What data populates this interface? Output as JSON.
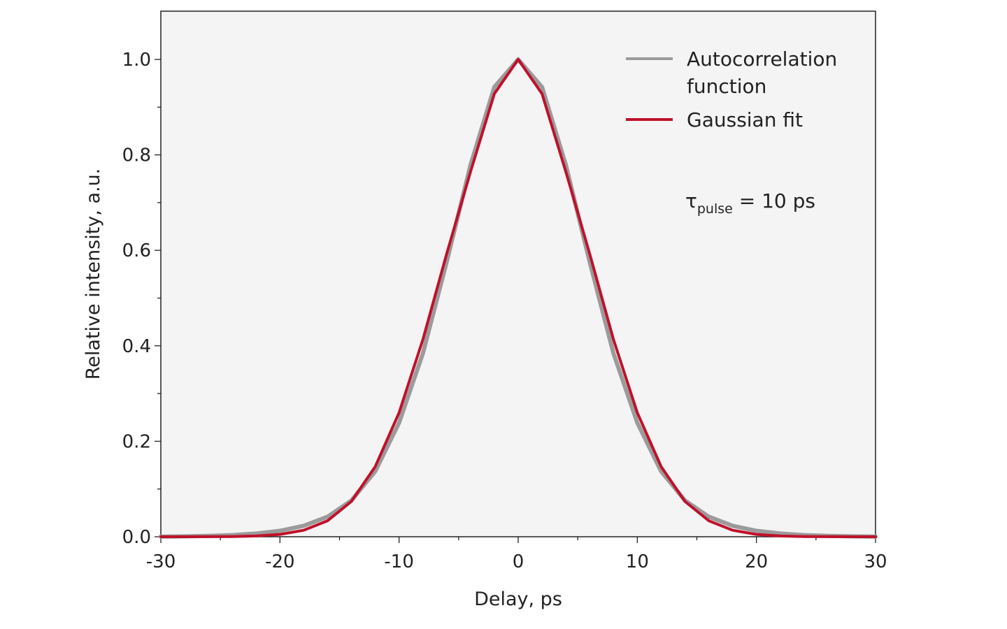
{
  "chart_data": {
    "type": "line",
    "xlabel": "Delay, ps",
    "ylabel": "Relative intensity, a.u.",
    "xlim": [
      -30,
      30
    ],
    "ylim": [
      0,
      1.1
    ],
    "x_ticks": [
      -30,
      -20,
      -10,
      0,
      10,
      20,
      30
    ],
    "x_tick_labels": [
      "-30",
      "-20",
      "-10",
      "0",
      "10",
      "20",
      "30"
    ],
    "y_ticks": [
      0.0,
      0.2,
      0.4,
      0.6,
      0.8,
      1.0
    ],
    "y_tick_labels": [
      "0.0",
      "0.2",
      "0.4",
      "0.6",
      "0.8",
      "1.0"
    ],
    "grid": false,
    "legend_position": "top-right",
    "annotation": {
      "symbol": "τ",
      "subscript": "pulse",
      "text": " = 10 ps"
    },
    "x": [
      -30,
      -28,
      -26,
      -24,
      -22,
      -20,
      -18,
      -16,
      -14,
      -12,
      -10,
      -8,
      -6,
      -4,
      -2,
      0,
      2,
      4,
      6,
      8,
      10,
      12,
      14,
      16,
      18,
      20,
      22,
      24,
      26,
      28,
      30
    ],
    "series": [
      {
        "name": "Autocorrelation function",
        "color": "#9b9b9b",
        "values": [
          0.0004,
          0.0009,
          0.0018,
          0.0035,
          0.0068,
          0.0125,
          0.023,
          0.042,
          0.076,
          0.137,
          0.239,
          0.384,
          0.576,
          0.779,
          0.942,
          1.0,
          0.942,
          0.779,
          0.576,
          0.384,
          0.239,
          0.137,
          0.076,
          0.042,
          0.023,
          0.0125,
          0.0068,
          0.0035,
          0.0018,
          0.0009,
          0.0004
        ]
      },
      {
        "name": "Gaussian fit",
        "color": "#c0112b",
        "values": [
          0.0,
          0.0,
          0.0001,
          0.0005,
          0.0016,
          0.005,
          0.0136,
          0.0336,
          0.074,
          0.147,
          0.26,
          0.413,
          0.593,
          0.765,
          0.928,
          1.0,
          0.928,
          0.765,
          0.593,
          0.413,
          0.26,
          0.147,
          0.074,
          0.0336,
          0.0136,
          0.005,
          0.0016,
          0.0005,
          0.0001,
          0.0,
          0.0
        ]
      }
    ]
  }
}
